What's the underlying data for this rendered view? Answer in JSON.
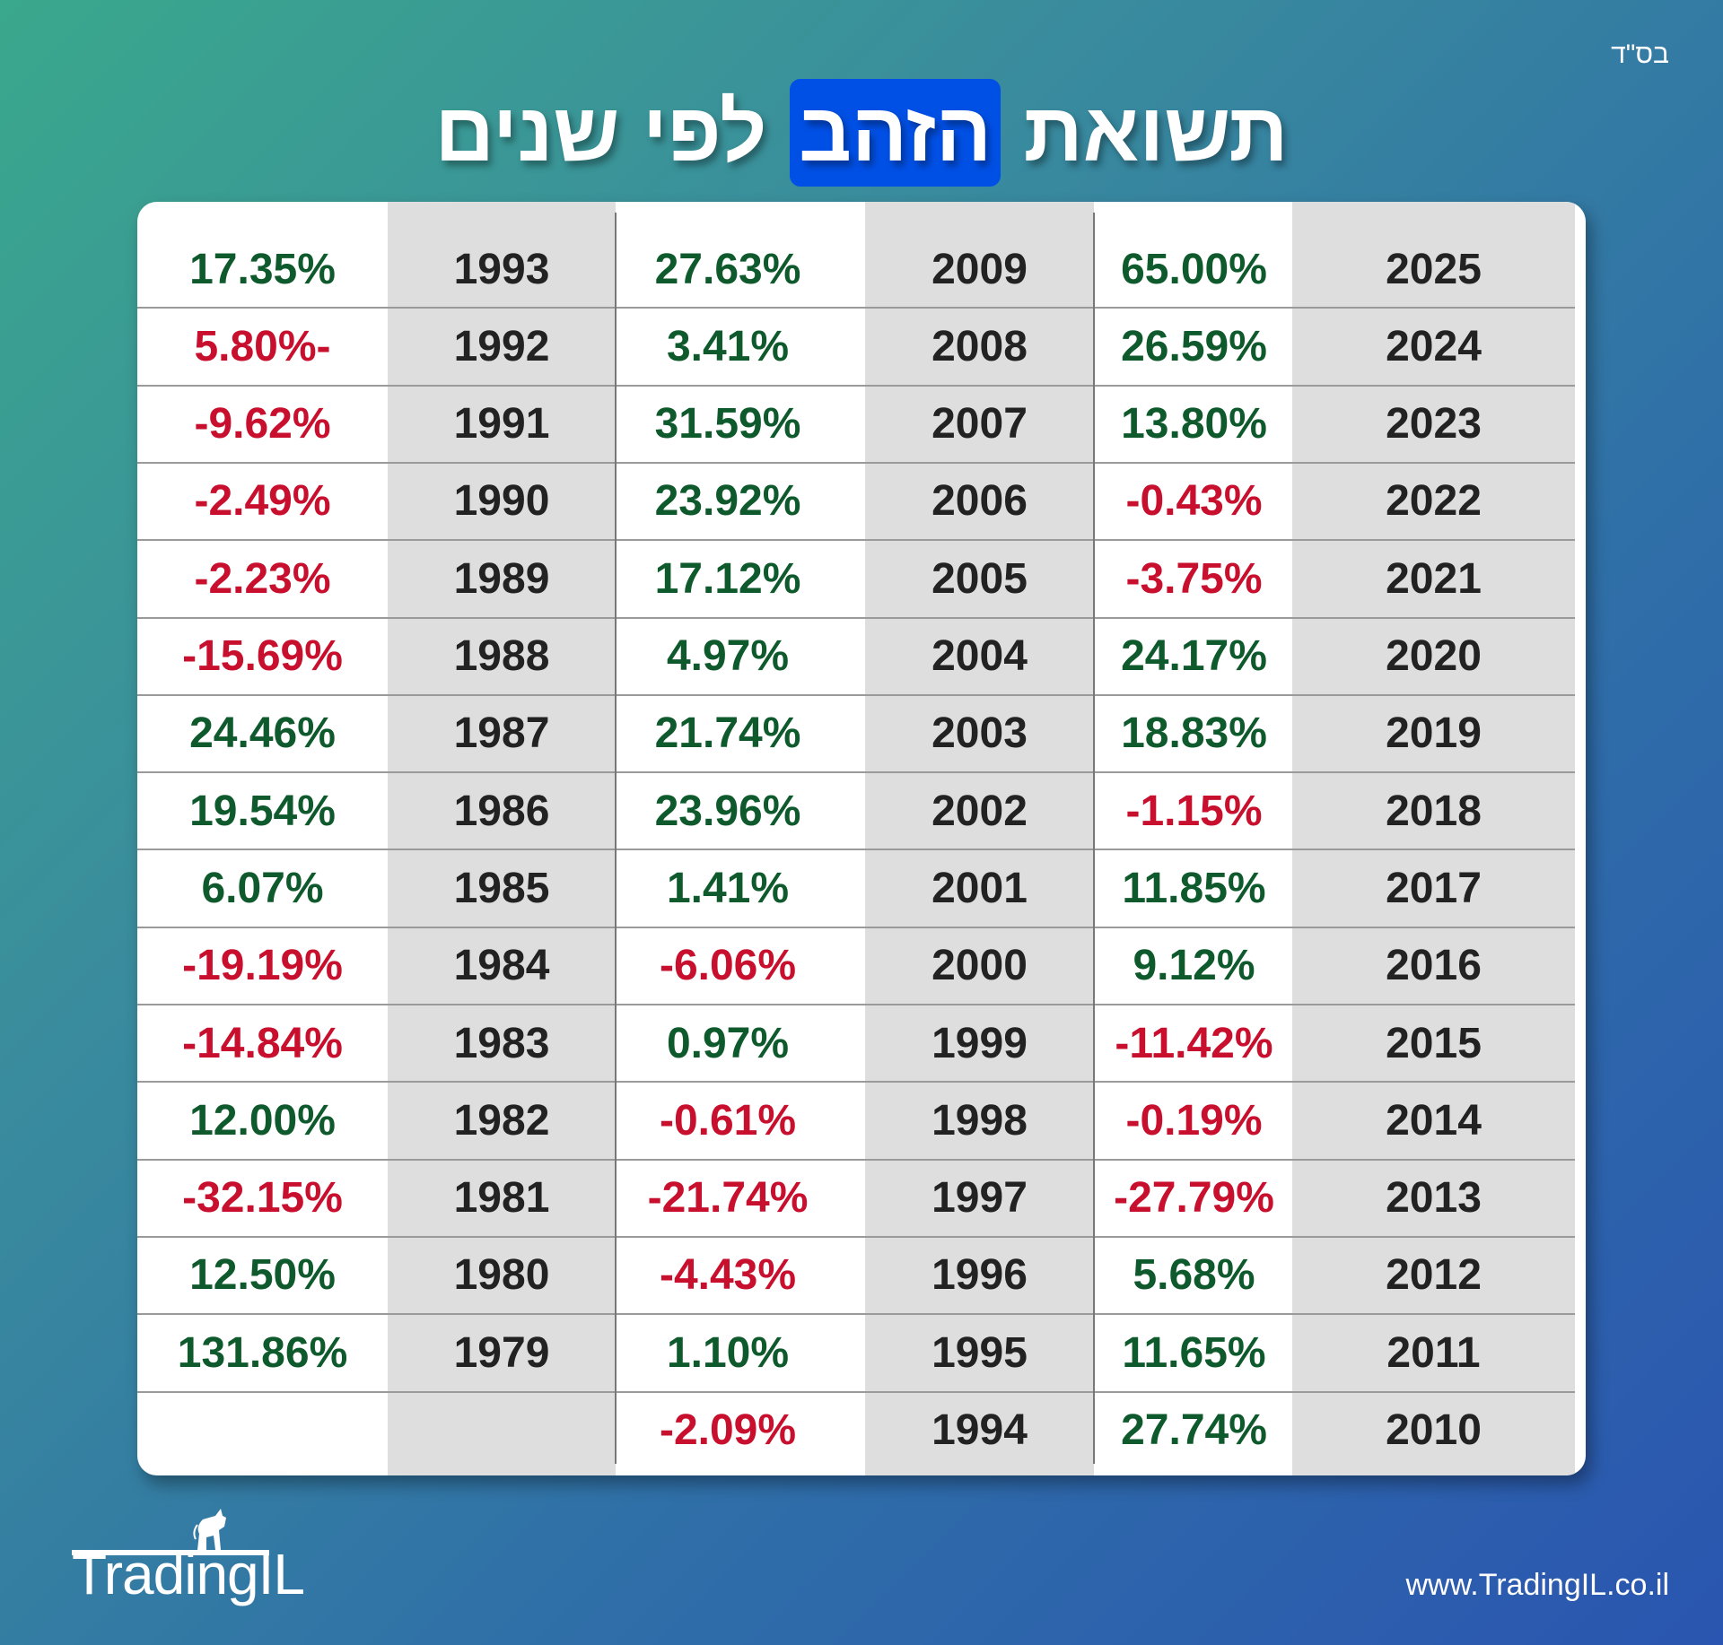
{
  "header": {
    "blessing": "בס\"ד",
    "title_part1": "תשואת",
    "title_highlight": "הזהב",
    "title_part2": "לפי שנים"
  },
  "colors": {
    "positive": "#0f5a2d",
    "negative": "#c8102e",
    "highlight": "#0050e6"
  },
  "table": {
    "groups": [
      {
        "rows": [
          {
            "year": "2025",
            "value": "65.00%"
          },
          {
            "year": "2024",
            "value": "26.59%"
          },
          {
            "year": "2023",
            "value": "13.80%"
          },
          {
            "year": "2022",
            "value": "-0.43%"
          },
          {
            "year": "2021",
            "value": "-3.75%"
          },
          {
            "year": "2020",
            "value": "24.17%"
          },
          {
            "year": "2019",
            "value": "18.83%"
          },
          {
            "year": "2018",
            "value": "-1.15%"
          },
          {
            "year": "2017",
            "value": "11.85%"
          },
          {
            "year": "2016",
            "value": "9.12%"
          },
          {
            "year": "2015",
            "value": "-11.42%"
          },
          {
            "year": "2014",
            "value": "-0.19%"
          },
          {
            "year": "2013",
            "value": "-27.79%"
          },
          {
            "year": "2012",
            "value": "5.68%"
          },
          {
            "year": "2011",
            "value": "11.65%"
          },
          {
            "year": "2010",
            "value": "27.74%"
          }
        ]
      },
      {
        "rows": [
          {
            "year": "2009",
            "value": "27.63%"
          },
          {
            "year": "2008",
            "value": "3.41%"
          },
          {
            "year": "2007",
            "value": "31.59%"
          },
          {
            "year": "2006",
            "value": "23.92%"
          },
          {
            "year": "2005",
            "value": "17.12%"
          },
          {
            "year": "2004",
            "value": "4.97%"
          },
          {
            "year": "2003",
            "value": "21.74%"
          },
          {
            "year": "2002",
            "value": "23.96%"
          },
          {
            "year": "2001",
            "value": "1.41%"
          },
          {
            "year": "2000",
            "value": "-6.06%"
          },
          {
            "year": "1999",
            "value": "0.97%"
          },
          {
            "year": "1998",
            "value": "-0.61%"
          },
          {
            "year": "1997",
            "value": "-21.74%"
          },
          {
            "year": "1996",
            "value": "-4.43%"
          },
          {
            "year": "1995",
            "value": "1.10%"
          },
          {
            "year": "1994",
            "value": "-2.09%"
          }
        ]
      },
      {
        "rows": [
          {
            "year": "1993",
            "value": "17.35%"
          },
          {
            "year": "1992",
            "value": "5.80%-"
          },
          {
            "year": "1991",
            "value": "-9.62%"
          },
          {
            "year": "1990",
            "value": "-2.49%"
          },
          {
            "year": "1989",
            "value": "-2.23%"
          },
          {
            "year": "1988",
            "value": "-15.69%"
          },
          {
            "year": "1987",
            "value": "24.46%"
          },
          {
            "year": "1986",
            "value": "19.54%"
          },
          {
            "year": "1985",
            "value": "6.07%"
          },
          {
            "year": "1984",
            "value": "-19.19%"
          },
          {
            "year": "1983",
            "value": "-14.84%"
          },
          {
            "year": "1982",
            "value": "12.00%"
          },
          {
            "year": "1981",
            "value": "-32.15%"
          },
          {
            "year": "1980",
            "value": "12.50%"
          },
          {
            "year": "1979",
            "value": "131.86%"
          }
        ]
      }
    ]
  },
  "footer": {
    "logo": "TradingIL",
    "website": "www.TradingIL.co.il"
  }
}
